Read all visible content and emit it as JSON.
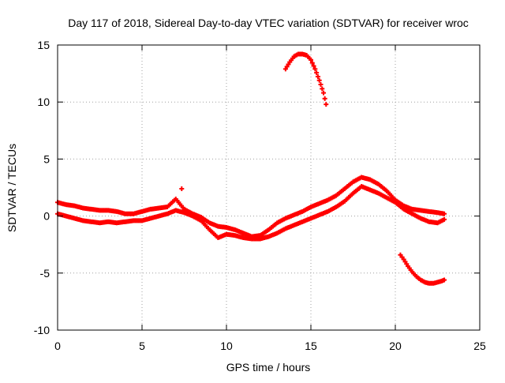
{
  "chart_data": {
    "type": "scatter",
    "title": "Day 117 of 2018, Sidereal Day-to-day VTEC variation (SDTVAR) for receiver wroc",
    "xlabel": "GPS time / hours",
    "ylabel": "SDTVAR / TECUs",
    "xlim": [
      0,
      25
    ],
    "ylim": [
      -10,
      15
    ],
    "xticks": [
      0,
      5,
      10,
      15,
      20,
      25
    ],
    "yticks": [
      -10,
      -5,
      0,
      5,
      10,
      15
    ],
    "xtick_labels": [
      "0",
      "5",
      "10",
      "15",
      "20",
      "25"
    ],
    "ytick_labels": [
      "-10",
      "-5",
      "0",
      "5",
      "10",
      "15"
    ],
    "grid": true,
    "marker": "plus",
    "color": "#ff0000",
    "series": [
      {
        "name": "main band upper",
        "x": [
          0.0,
          0.5,
          1.0,
          1.5,
          2.0,
          2.5,
          3.0,
          3.5,
          4.0,
          4.5,
          5.0,
          5.5,
          6.0,
          6.5,
          7.0,
          7.5,
          8.0,
          8.5,
          9.0,
          9.5,
          10.0,
          10.5,
          11.0,
          11.5,
          12.0,
          12.5,
          13.0,
          13.5,
          14.0,
          14.5,
          15.0,
          15.5,
          16.0,
          16.5,
          17.0,
          17.5,
          18.0,
          18.5,
          19.0,
          19.5,
          20.0,
          20.5,
          21.0,
          21.5,
          22.0,
          22.5,
          22.9
        ],
        "y": [
          1.2,
          1.0,
          0.9,
          0.7,
          0.6,
          0.5,
          0.5,
          0.4,
          0.2,
          0.2,
          0.4,
          0.6,
          0.7,
          0.8,
          1.5,
          0.6,
          0.2,
          -0.1,
          -0.6,
          -0.9,
          -1.0,
          -1.2,
          -1.5,
          -1.8,
          -1.7,
          -1.2,
          -0.6,
          -0.2,
          0.1,
          0.4,
          0.8,
          1.1,
          1.4,
          1.8,
          2.4,
          3.0,
          3.4,
          3.2,
          2.8,
          2.2,
          1.4,
          0.9,
          0.6,
          0.5,
          0.4,
          0.3,
          0.2
        ]
      },
      {
        "name": "main band lower",
        "x": [
          0.0,
          0.5,
          1.0,
          1.5,
          2.0,
          2.5,
          3.0,
          3.5,
          4.0,
          4.5,
          5.0,
          5.5,
          6.0,
          6.5,
          7.0,
          7.5,
          8.0,
          8.5,
          9.0,
          9.5,
          10.0,
          10.5,
          11.0,
          11.5,
          12.0,
          12.5,
          13.0,
          13.5,
          14.0,
          14.5,
          15.0,
          15.5,
          16.0,
          16.5,
          17.0,
          17.5,
          18.0,
          18.5,
          19.0,
          19.5,
          20.0,
          20.5,
          21.0,
          21.5,
          22.0,
          22.5,
          22.9
        ],
        "y": [
          0.2,
          0.0,
          -0.2,
          -0.4,
          -0.5,
          -0.6,
          -0.5,
          -0.6,
          -0.5,
          -0.4,
          -0.4,
          -0.2,
          0.0,
          0.2,
          0.5,
          0.3,
          0.0,
          -0.4,
          -1.2,
          -1.9,
          -1.6,
          -1.7,
          -1.9,
          -2.0,
          -2.0,
          -1.8,
          -1.5,
          -1.1,
          -0.8,
          -0.5,
          -0.2,
          0.1,
          0.4,
          0.8,
          1.3,
          2.0,
          2.6,
          2.3,
          2.0,
          1.6,
          1.2,
          0.6,
          0.2,
          -0.2,
          -0.5,
          -0.6,
          -0.3
        ]
      },
      {
        "name": "upper arc",
        "x": [
          13.5,
          13.75,
          14.0,
          14.25,
          14.5,
          14.75,
          15.0,
          15.25,
          15.5,
          15.75,
          15.9
        ],
        "y": [
          12.9,
          13.5,
          14.0,
          14.2,
          14.2,
          14.1,
          13.7,
          12.9,
          11.9,
          10.8,
          9.8
        ]
      },
      {
        "name": "lower arc",
        "x": [
          20.3,
          20.5,
          20.75,
          21.0,
          21.25,
          21.5,
          21.75,
          22.0,
          22.25,
          22.5,
          22.75,
          22.9
        ],
        "y": [
          -3.4,
          -3.8,
          -4.4,
          -4.9,
          -5.3,
          -5.6,
          -5.8,
          -5.9,
          -5.9,
          -5.8,
          -5.7,
          -5.6
        ]
      },
      {
        "name": "outlier",
        "x": [
          7.35
        ],
        "y": [
          2.4
        ]
      }
    ]
  }
}
